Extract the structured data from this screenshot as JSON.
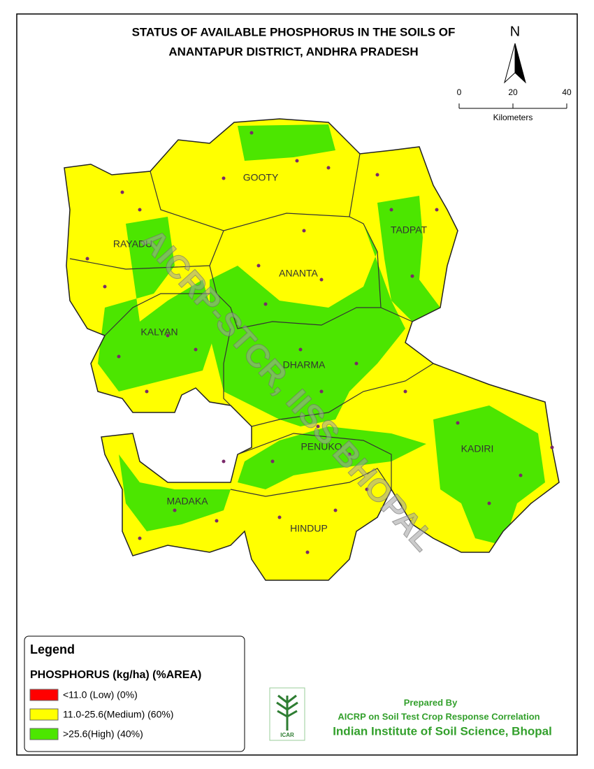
{
  "title": {
    "line1": "STATUS OF AVAILABLE PHOSPHORUS IN THE SOILS OF",
    "line2": "ANANTAPUR  DISTRICT, ANDHRA PRADESH"
  },
  "north": "N",
  "scale": {
    "ticks": [
      "0",
      "20",
      "40"
    ],
    "unit": "Kilometers"
  },
  "districts": [
    "GOOTY",
    "TADPAT",
    "RAYADU",
    "ANANTA",
    "KALYAN",
    "DHARMA",
    "PENUKO",
    "KADIRI",
    "MADAKA",
    "HINDUP"
  ],
  "watermark": "AICRP-STCR, IISS BHOPAL",
  "legend": {
    "title": "Legend",
    "subtitle": "PHOSPHORUS (kg/ha) (%AREA)",
    "items": [
      {
        "label": "<11.0 (Low) (0%)",
        "color": "#ff0000"
      },
      {
        "label": "11.0-25.6(Medium) (60%)",
        "color": "#ffff00"
      },
      {
        "label": ">25.6(High) (40%)",
        "color": "#4ce600"
      }
    ]
  },
  "credits": {
    "prepared": "Prepared By",
    "project": "AICRP on Soil Test Crop Response Correlation",
    "institute": "Indian Institute of Soil Science, Bhopal",
    "logo": "ICAR"
  }
}
